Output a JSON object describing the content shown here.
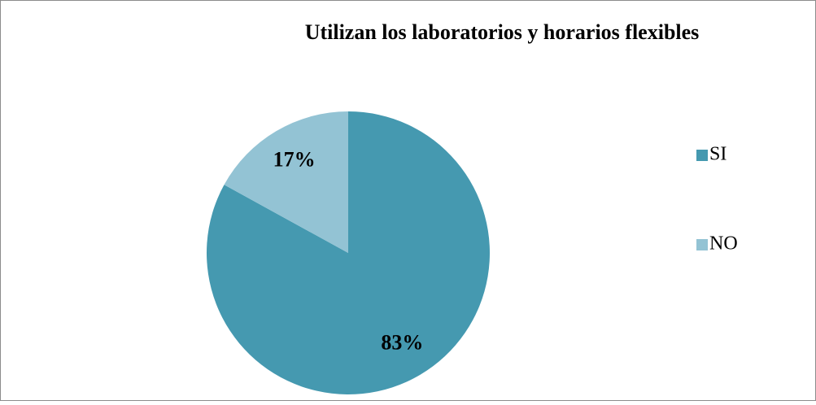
{
  "chart_data": {
    "type": "pie",
    "title": "Utilizan los laboratorios y horarios flexibles",
    "categories": [
      "SI",
      "NO"
    ],
    "values": [
      83,
      17
    ],
    "value_labels": [
      "83%",
      "17%"
    ],
    "colors": [
      "#4599b0",
      "#93c3d4"
    ],
    "legend": "right"
  }
}
